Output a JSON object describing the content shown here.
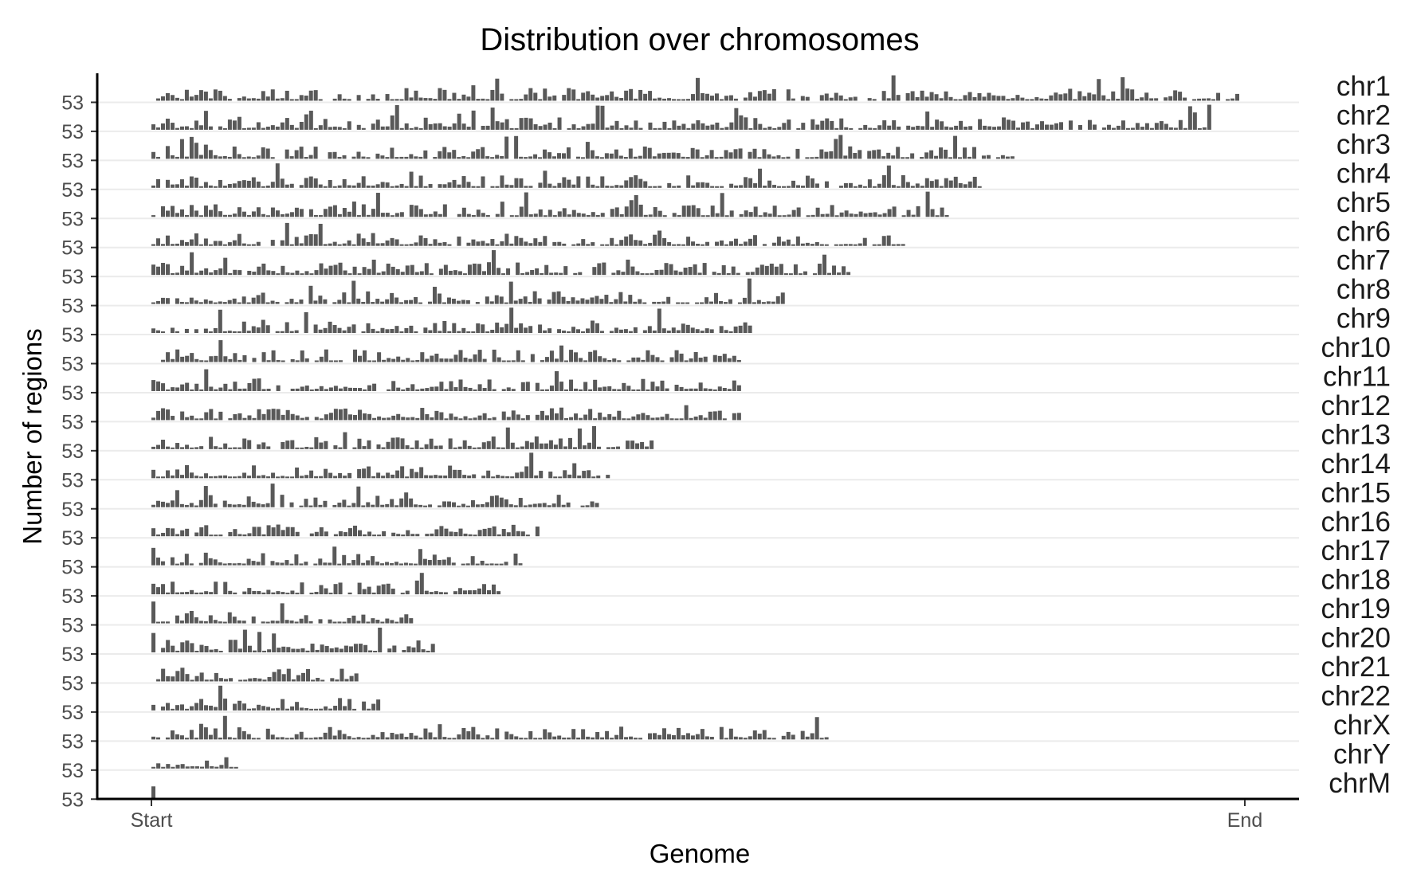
{
  "chart_data": {
    "type": "bar",
    "title": "Distribution over chromosomes",
    "xlabel": "Genome",
    "ylabel": "Number of regions",
    "x_ticks": [
      "Start",
      "End"
    ],
    "y_tick_label": "53",
    "grid": "horizontal",
    "bar_color": "#595959",
    "axis_color": "#000000",
    "grid_color": "#ebebeb",
    "series": [
      {
        "name": "chr1",
        "extent": 1.0
      },
      {
        "name": "chr2",
        "extent": 0.97
      },
      {
        "name": "chr3",
        "extent": 0.79
      },
      {
        "name": "chr4",
        "extent": 0.76
      },
      {
        "name": "chr5",
        "extent": 0.73
      },
      {
        "name": "chr6",
        "extent": 0.69
      },
      {
        "name": "chr7",
        "extent": 0.64
      },
      {
        "name": "chr8",
        "extent": 0.58
      },
      {
        "name": "chr9",
        "extent": 0.55
      },
      {
        "name": "chr10",
        "extent": 0.54
      },
      {
        "name": "chr11",
        "extent": 0.54
      },
      {
        "name": "chr12",
        "extent": 0.54
      },
      {
        "name": "chr13",
        "extent": 0.46
      },
      {
        "name": "chr14",
        "extent": 0.42
      },
      {
        "name": "chr15",
        "extent": 0.41
      },
      {
        "name": "chr16",
        "extent": 0.36
      },
      {
        "name": "chr17",
        "extent": 0.34
      },
      {
        "name": "chr18",
        "extent": 0.32
      },
      {
        "name": "chr19",
        "extent": 0.24
      },
      {
        "name": "chr20",
        "extent": 0.26
      },
      {
        "name": "chr21",
        "extent": 0.19
      },
      {
        "name": "chr22",
        "extent": 0.21
      },
      {
        "name": "chrX",
        "extent": 0.62
      },
      {
        "name": "chrY",
        "extent": 0.08
      },
      {
        "name": "chrM",
        "extent": 0.003
      }
    ]
  }
}
